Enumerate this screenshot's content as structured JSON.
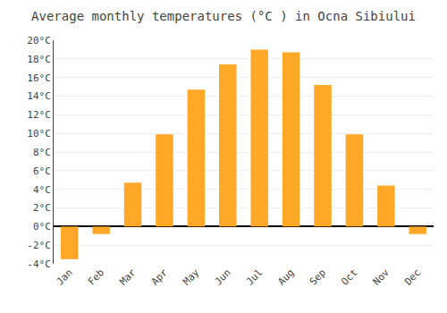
{
  "chart_data": {
    "type": "bar",
    "title": "Average monthly temperatures (°C ) in Ocna Sibiului",
    "categories": [
      "Jan",
      "Feb",
      "Mar",
      "Apr",
      "May",
      "Jun",
      "Jul",
      "Aug",
      "Sep",
      "Oct",
      "Nov",
      "Dec"
    ],
    "values": [
      -3.5,
      -0.8,
      4.7,
      9.9,
      14.7,
      17.4,
      19.0,
      18.7,
      15.2,
      9.9,
      4.4,
      -0.8
    ],
    "color": "#FFA726",
    "ylim": [
      -4,
      20
    ],
    "yticks": [
      {
        "value": -4,
        "label": "-4°C"
      },
      {
        "value": -2,
        "label": "-2°C"
      },
      {
        "value": 0,
        "label": "0°C"
      },
      {
        "value": 2,
        "label": "2°C"
      },
      {
        "value": 4,
        "label": "4°C"
      },
      {
        "value": 6,
        "label": "6°C"
      },
      {
        "value": 8,
        "label": "8°C"
      },
      {
        "value": 10,
        "label": "10°C"
      },
      {
        "value": 12,
        "label": "12°C"
      },
      {
        "value": 14,
        "label": "14°C"
      },
      {
        "value": 16,
        "label": "16°C"
      },
      {
        "value": 18,
        "label": "18°C"
      },
      {
        "value": 20,
        "label": "20°C"
      }
    ],
    "grid": true
  }
}
